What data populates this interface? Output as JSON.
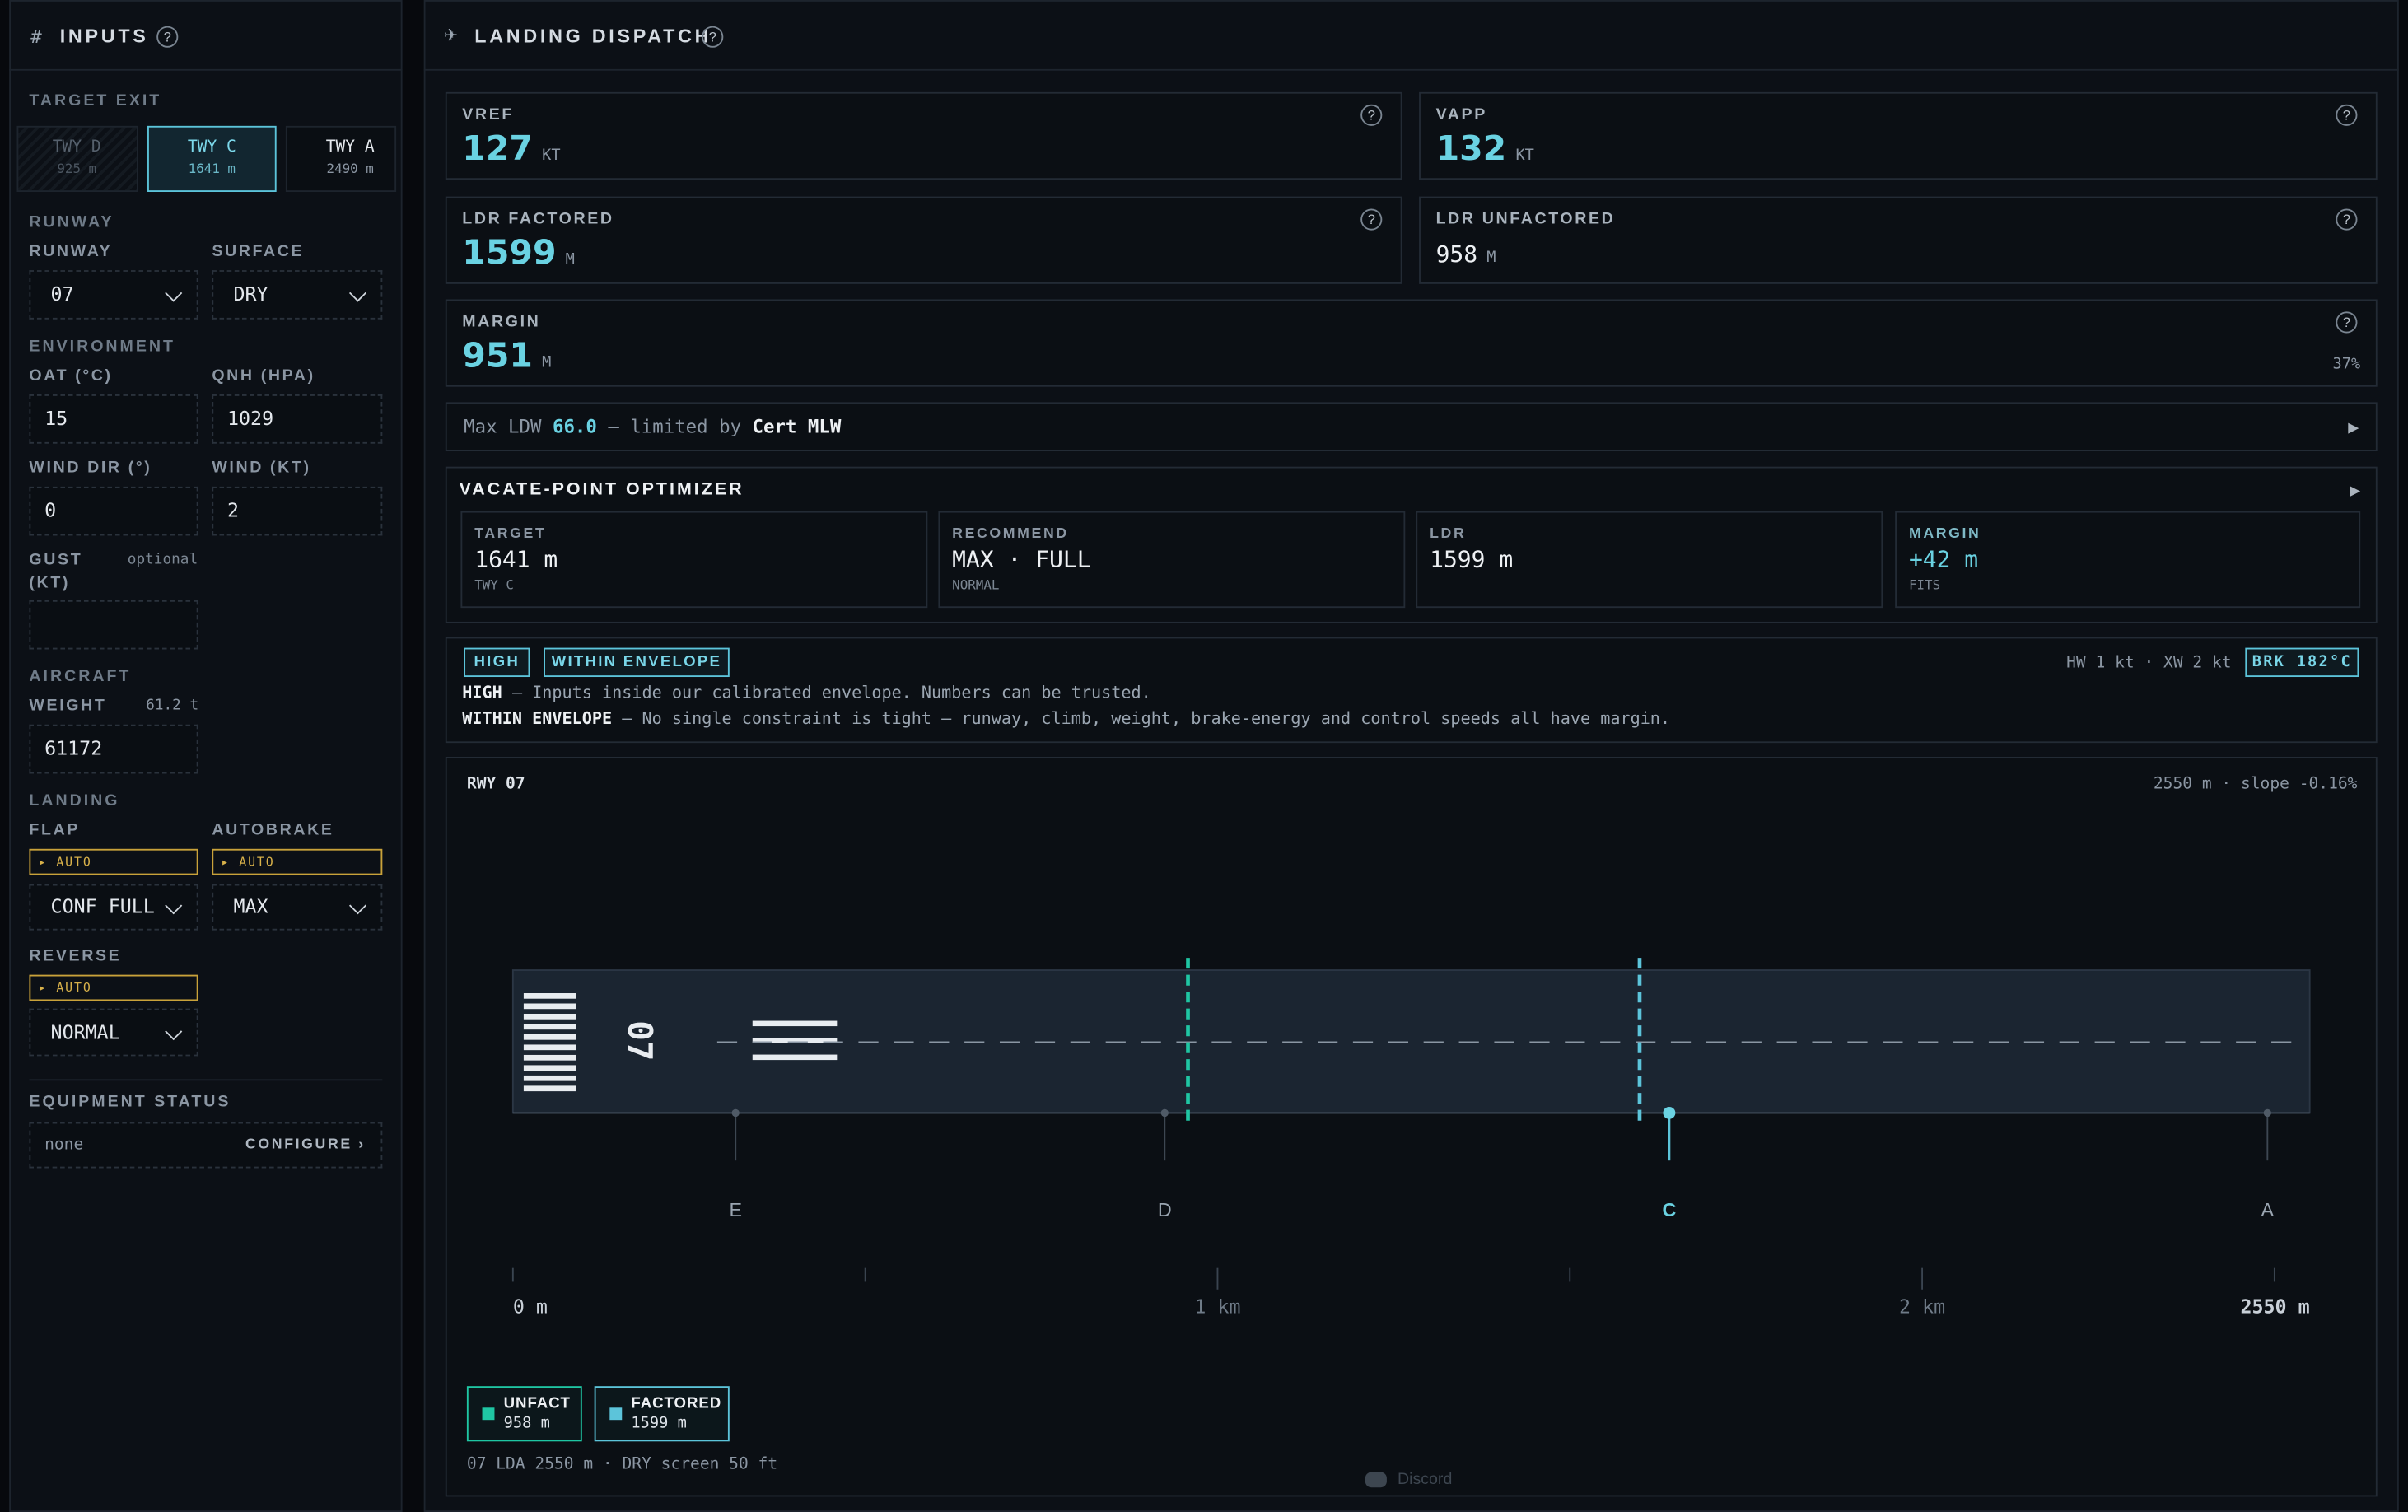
{
  "inputs": {
    "title": "INPUTS",
    "help": "?",
    "target_exit": {
      "label": "TARGET EXIT",
      "options": [
        {
          "name": "TWY D",
          "distance": "925 m"
        },
        {
          "name": "TWY C",
          "distance": "1641 m"
        },
        {
          "name": "TWY A",
          "distance": "2490 m"
        }
      ]
    },
    "runway_section": {
      "title": "RUNWAY",
      "runway": {
        "label": "RUNWAY",
        "value": "07"
      },
      "surface": {
        "label": "SURFACE",
        "value": "DRY"
      }
    },
    "environment": {
      "title": "ENVIRONMENT",
      "oat": {
        "label": "OAT (°C)",
        "value": "15"
      },
      "qnh": {
        "label": "QNH (HPA)",
        "value": "1029"
      },
      "wind_dir": {
        "label": "WIND DIR (°)",
        "value": "0"
      },
      "wind": {
        "label": "WIND (KT)",
        "value": "2"
      },
      "gust": {
        "label": "GUST",
        "unit": "(KT)",
        "hint": "optional"
      }
    },
    "aircraft": {
      "title": "AIRCRAFT",
      "weight": {
        "label": "WEIGHT",
        "hint": "61.2 t",
        "value": "61172"
      }
    },
    "landing": {
      "title": "LANDING",
      "flap": {
        "label": "FLAP",
        "mode": "▸ AUTO",
        "value": "CONF FULL"
      },
      "autobrake": {
        "label": "AUTOBRAKE",
        "mode": "▸ AUTO",
        "value": "MAX"
      },
      "reverse": {
        "label": "REVERSE",
        "mode": "▸ AUTO",
        "value": "NORMAL"
      }
    },
    "equipment": {
      "title": "EQUIPMENT STATUS",
      "value": "none",
      "action": "CONFIGURE ›"
    }
  },
  "dispatch": {
    "title": "LANDING DISPATCH",
    "help": "?",
    "metrics": [
      {
        "label": "VREF",
        "value": "127",
        "unit": "KT"
      },
      {
        "label": "VAPP",
        "value": "132",
        "unit": "KT"
      },
      {
        "label": "LDR FACTORED",
        "value": "1599",
        "unit": "M"
      },
      {
        "label": "LDR UNFACTORED",
        "value": "958",
        "unit": "M"
      },
      {
        "label": "MARGIN",
        "value": "951",
        "unit": "M",
        "percent": "37%"
      }
    ],
    "ldw": {
      "prefix": "Max LDW",
      "value": "66.0",
      "middle": "— limited by",
      "limit": "Cert MLW",
      "arrow": "▶"
    },
    "optimizer": {
      "title": "VACATE-POINT OPTIMIZER",
      "arrow": "▶",
      "cards": [
        {
          "label": "TARGET",
          "value": "1641 m",
          "sub": "TWY C"
        },
        {
          "label": "RECOMMEND",
          "value": "MAX · FULL",
          "sub": "NORMAL"
        },
        {
          "label": "LDR",
          "value": "1599 m"
        },
        {
          "label": "MARGIN",
          "value": "+42 m",
          "sub": "FITS"
        }
      ]
    },
    "status": {
      "badges": [
        "HIGH",
        "WITHIN ENVELOPE"
      ],
      "wind": "HW 1 kt · XW 2 kt",
      "brake": "BRK 182°C",
      "lines": [
        {
          "key": "HIGH",
          "text": " — Inputs inside our calibrated envelope. Numbers can be trusted."
        },
        {
          "key": "WITHIN ENVELOPE",
          "text": " — No single constraint is tight — runway, climb, weight, brake-energy and control speeds all have margin."
        }
      ]
    },
    "runway": {
      "title": "RWY 07",
      "info": "2550 m · slope -0.16%",
      "designator": "07",
      "xlim": [
        0,
        2550
      ],
      "ticks": [
        0,
        500,
        1000,
        1500,
        2000,
        2500
      ],
      "tick_labels": [
        {
          "value": 0,
          "label": "0 m"
        },
        {
          "value": 1000,
          "label": "1 km"
        },
        {
          "value": 2000,
          "label": "2 km"
        },
        {
          "value": 2550,
          "label": "2550 m"
        }
      ],
      "exits": [
        {
          "label": "E",
          "position": 316
        },
        {
          "label": "D",
          "position": 925
        },
        {
          "label": "C",
          "position": 1641,
          "highlight": true
        },
        {
          "label": "A",
          "position": 2490
        }
      ],
      "legend": [
        {
          "name": "UNFACT",
          "value": 958,
          "label": "958 m",
          "color": "#1fc6a3"
        },
        {
          "name": "FACTORED",
          "value": 1599,
          "label": "1599 m",
          "color": "#5cc4da"
        }
      ],
      "footer": "07 LDA 2550 m · DRY screen 50 ft"
    },
    "discord": "Discord"
  }
}
